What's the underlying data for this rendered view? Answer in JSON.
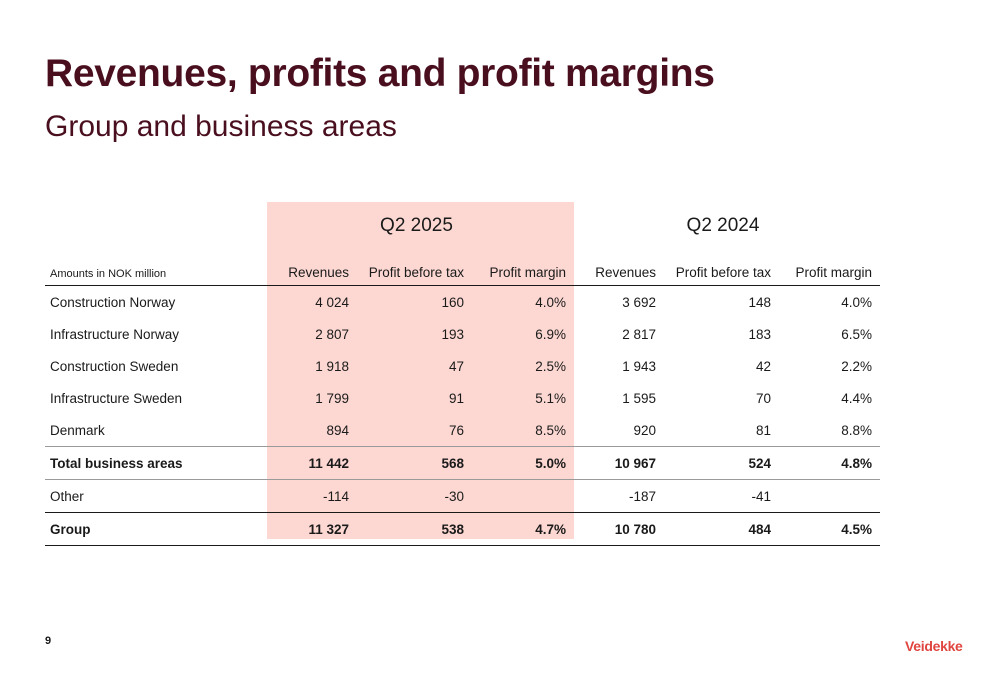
{
  "slide": {
    "title": "Revenues, profits and profit margins",
    "subtitle": "Group and business areas",
    "page_number": "9",
    "logo_text": "Veidekke"
  },
  "table": {
    "periods": [
      "Q2 2025",
      "Q2 2024"
    ],
    "amounts_label": "Amounts in NOK million",
    "columns": [
      "Revenues",
      "Profit before tax",
      "Profit margin",
      "Revenues",
      "Profit before tax",
      "Profit margin"
    ],
    "rows": [
      {
        "label": "Construction Norway",
        "values": [
          "4 024",
          "160",
          "4.0%",
          "3 692",
          "148",
          "4.0%"
        ]
      },
      {
        "label": "Infrastructure Norway",
        "values": [
          "2 807",
          "193",
          "6.9%",
          "2 817",
          "183",
          "6.5%"
        ]
      },
      {
        "label": "Construction Sweden",
        "values": [
          "1 918",
          "47",
          "2.5%",
          "1 943",
          "42",
          "2.2%"
        ]
      },
      {
        "label": "Infrastructure Sweden",
        "values": [
          "1 799",
          "91",
          "5.1%",
          "1 595",
          "70",
          "4.4%"
        ]
      },
      {
        "label": "Denmark",
        "values": [
          "894",
          "76",
          "8.5%",
          "920",
          "81",
          "8.8%"
        ]
      },
      {
        "label": "Total business areas",
        "values": [
          "11 442",
          "568",
          "5.0%",
          "10 967",
          "524",
          "4.8%"
        ]
      },
      {
        "label": "Other",
        "values": [
          "-114",
          "-30",
          "",
          "-187",
          "-41",
          ""
        ]
      },
      {
        "label": "Group",
        "values": [
          "11 327",
          "538",
          "4.7%",
          "10 780",
          "484",
          "4.5%"
        ]
      }
    ]
  },
  "colors": {
    "title": "#4a0f1f",
    "highlight": "#fdd8d2",
    "logo": "#e0453f"
  }
}
